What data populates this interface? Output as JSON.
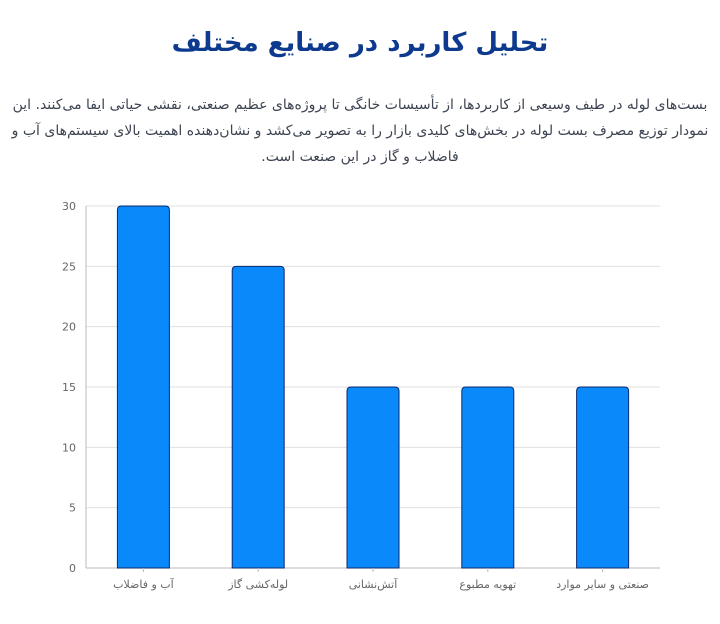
{
  "title": "تحلیل کاربرد در صنایع مختلف",
  "description": {
    "line1": "بست‌های لوله در طیف وسیعی از کاربردها، از تأسیسات خانگی تا پروژه‌های عظیم صنعتی، نقشی حیاتی ایفا می‌کنند. این",
    "line2": "نمودار توزیع مصرف بست لوله در بخش‌های کلیدی بازار را به تصویر می‌کشد و نشان‌دهنده اهمیت بالای سیستم‌های آب و",
    "line3": "فاضلاب و گاز در این صنعت است."
  },
  "colors": {
    "bar_fill": "#0a89fa",
    "bar_stroke": "#0b2a6e",
    "title": "#0d3a8f",
    "grid": "#e0e0e0"
  },
  "chart_data": {
    "type": "bar",
    "categories": [
      "آب و فاضلاب",
      "لوله‌کشی گاز",
      "آتش‌نشانی",
      "تهویه مطبوع",
      "صنعتی و سایر موارد"
    ],
    "values": [
      30,
      25,
      15,
      15,
      15
    ],
    "ylim": [
      0,
      30
    ],
    "yticks": [
      "0",
      "5",
      "10",
      "15",
      "20",
      "25",
      "30"
    ],
    "grid": true,
    "legend": "none"
  }
}
